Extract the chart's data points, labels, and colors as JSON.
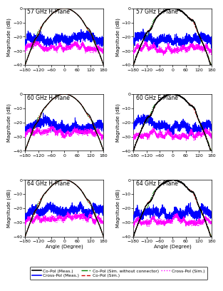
{
  "subplot_titles": [
    "57 GHz H-Plane",
    "57 GHz E-Plane",
    "60 GHz H-Plane",
    "60 GHz E-Plane",
    "64 GHz H-Plane",
    "64 GHz E-Plane"
  ],
  "ylim": [
    -40,
    0
  ],
  "xlim": [
    -180,
    180
  ],
  "yticks": [
    0,
    -10,
    -20,
    -30,
    -40
  ],
  "xticks": [
    -180,
    -120,
    -60,
    0,
    60,
    120,
    180
  ],
  "xlabel": "Angle (Degree)",
  "ylabel": "Magnitude (dB)",
  "legend_entries": [
    {
      "label": "Co-Pol (Meas.)",
      "color": "#000000",
      "linestyle": "-",
      "linewidth": 1.2
    },
    {
      "label": "Cross-Pol (Meas.)",
      "color": "#0000FF",
      "linestyle": "-",
      "linewidth": 1.2
    },
    {
      "label": "Co-Pol (Sim. without connector)",
      "color": "#008000",
      "linestyle": "-.",
      "linewidth": 1.0
    },
    {
      "label": "Co-Pol (Sim.)",
      "color": "#CC0000",
      "linestyle": "--",
      "linewidth": 1.0
    },
    {
      "label": "Cross-Pol (Sim.)",
      "color": "#FF00FF",
      "linestyle": ":",
      "linewidth": 1.0
    }
  ],
  "colors": {
    "co_pol_meas": "#000000",
    "cross_pol_meas": "#0000FF",
    "co_pol_sim_no_conn": "#228B22",
    "co_pol_sim": "#CC0000",
    "cross_pol_sim": "#FF00FF"
  },
  "title_fontsize": 5.5,
  "tick_fontsize": 4.5,
  "label_fontsize": 5.0,
  "legend_fontsize": 4.2,
  "lw_copol": 0.9,
  "lw_sim": 0.75,
  "lw_cross": 0.75
}
